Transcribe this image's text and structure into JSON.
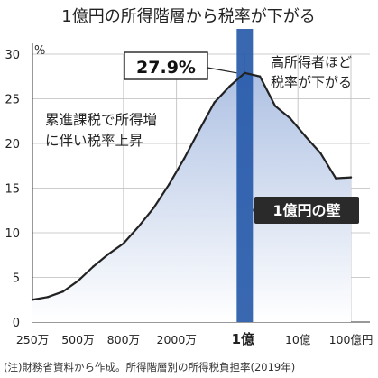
{
  "chart_data": {
    "type": "area",
    "title": "1億円の所得階層から税率が下がる",
    "ylabel": "%",
    "ylim": [
      0,
      30
    ],
    "y_ticks": [
      0,
      5,
      10,
      15,
      20,
      25,
      30
    ],
    "x_tick_labels": [
      "250万",
      "500万",
      "800万",
      "2000万",
      "1億",
      "10億",
      "100億円"
    ],
    "series": [
      {
        "values": [
          2.5,
          2.8,
          3.4,
          4.6,
          6.2,
          7.6,
          8.8,
          10.7,
          12.8,
          15.4,
          18.3,
          21.5,
          24.6,
          26.4,
          27.9,
          27.5,
          24.2,
          22.8,
          20.8,
          18.9,
          16.1,
          16.2
        ]
      }
    ],
    "highlight": {
      "x_label": "1億",
      "value": 27.9,
      "value_label": "27.9%"
    },
    "annotations": {
      "left": [
        "累進課税で所得増",
        "に伴い税率上昇"
      ],
      "right": [
        "高所得者ほど",
        "税率が下がる"
      ],
      "band": "1億円の壁"
    },
    "note": "(注)財務省資料から作成。所得階層別の所得税負担率(2019年)",
    "colors": {
      "band": "#2458a8",
      "area_top": "#aec1e3",
      "area_bottom": "#ffffff",
      "line": "#222222"
    }
  }
}
